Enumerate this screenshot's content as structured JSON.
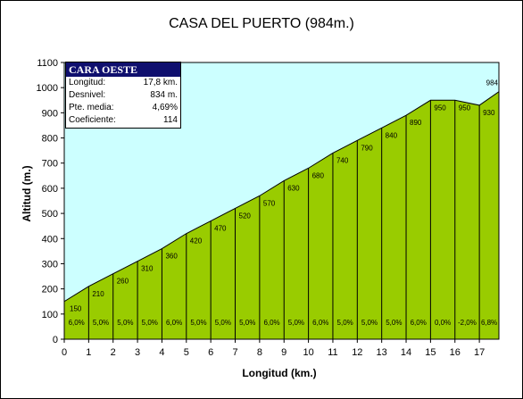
{
  "chart_data": {
    "type": "area",
    "title": "CASA DEL PUERTO (984m.)",
    "xlabel": "Longitud (km.)",
    "ylabel": "Altitud (m.)",
    "xlim": [
      0,
      17.8
    ],
    "ylim": [
      0,
      1100
    ],
    "x_ticks": [
      0,
      1,
      2,
      3,
      4,
      5,
      6,
      7,
      8,
      9,
      10,
      11,
      12,
      13,
      14,
      15,
      16,
      17
    ],
    "y_ticks": [
      0,
      100,
      200,
      300,
      400,
      500,
      600,
      700,
      800,
      900,
      1000,
      1100
    ],
    "x": [
      0,
      1,
      2,
      3,
      4,
      5,
      6,
      7,
      8,
      9,
      10,
      11,
      12,
      13,
      14,
      15,
      16,
      17,
      17.8
    ],
    "altitudes": [
      150,
      210,
      260,
      310,
      360,
      420,
      470,
      520,
      570,
      630,
      680,
      740,
      790,
      840,
      890,
      950,
      950,
      930,
      984
    ],
    "altitude_labels": [
      "150",
      "210",
      "260",
      "310",
      "360",
      "420",
      "470",
      "520",
      "570",
      "630",
      "680",
      "740",
      "790",
      "840",
      "890",
      "950",
      "950",
      "930",
      "984"
    ],
    "gradients": [
      "6,0%",
      "5,0%",
      "5,0%",
      "5,0%",
      "6,0%",
      "5,0%",
      "5,0%",
      "5,0%",
      "6,0%",
      "5,0%",
      "6,0%",
      "5,0%",
      "5,0%",
      "5,0%",
      "6,0%",
      "0,0%",
      "-2,0%",
      "6,8%"
    ],
    "colors": {
      "sky": "#ccffff",
      "profile": "#99cc00",
      "header": "#0f0f6e"
    },
    "grid": false
  },
  "infobox": {
    "header": "CARA OESTE",
    "rows": [
      {
        "label": "Longitud:",
        "value": "17,8 km."
      },
      {
        "label": "Desnivel:",
        "value": "834 m."
      },
      {
        "label": "Pte. media:",
        "value": "4,69%"
      },
      {
        "label": "Coeficiente:",
        "value": "114"
      }
    ]
  }
}
